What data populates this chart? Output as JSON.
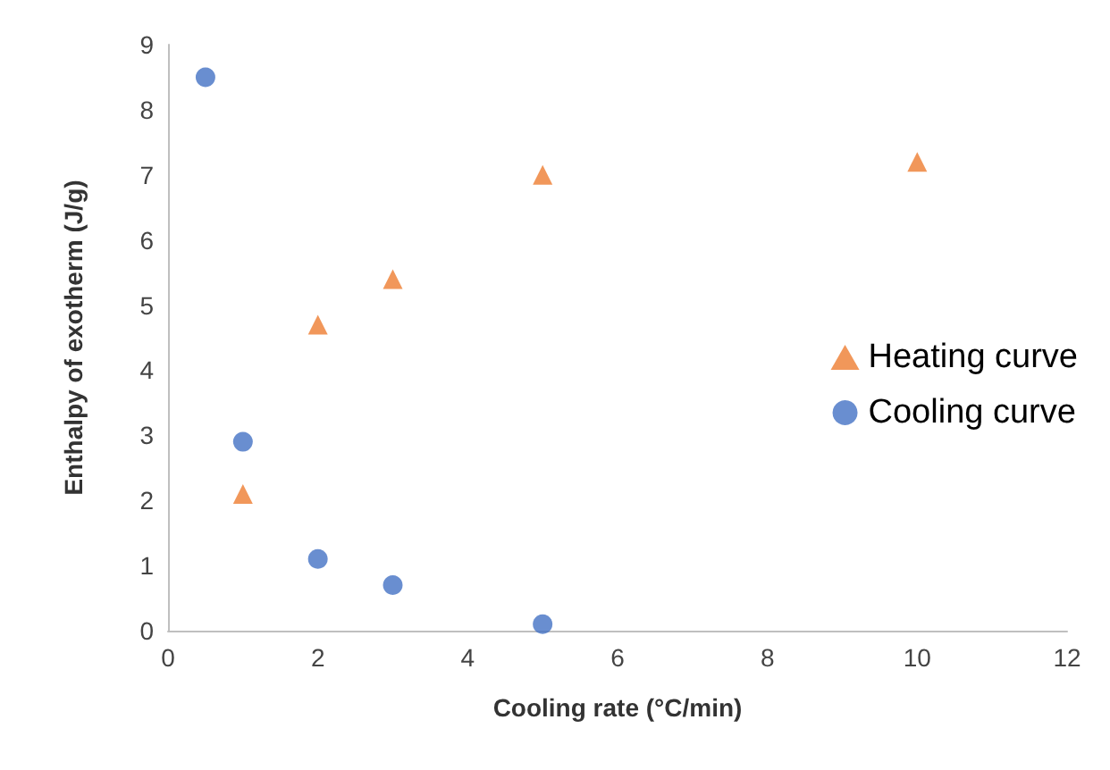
{
  "chart_data": {
    "type": "scatter",
    "xlabel": "Cooling rate (°C/min)",
    "ylabel": "Enthalpy of exotherm (J/g)",
    "xlim": [
      0,
      12
    ],
    "xticks": [
      0,
      2,
      4,
      6,
      8,
      10,
      12
    ],
    "ylim": [
      0,
      9
    ],
    "yticks": [
      0,
      1,
      2,
      3,
      4,
      5,
      6,
      7,
      8,
      9
    ],
    "grid": false,
    "legend": "right",
    "series": [
      {
        "name": "Heating curve",
        "color": "#ed7d31",
        "marker": "triangle",
        "x": [
          1,
          2,
          3,
          5,
          10
        ],
        "values": [
          2.1,
          4.7,
          5.4,
          7.0,
          7.2
        ]
      },
      {
        "name": "Cooling curve",
        "color": "#4472c4",
        "marker": "circle",
        "x": [
          0.5,
          1,
          2,
          3,
          5
        ],
        "values": [
          8.5,
          2.9,
          1.1,
          0.7,
          0.1
        ]
      }
    ]
  }
}
